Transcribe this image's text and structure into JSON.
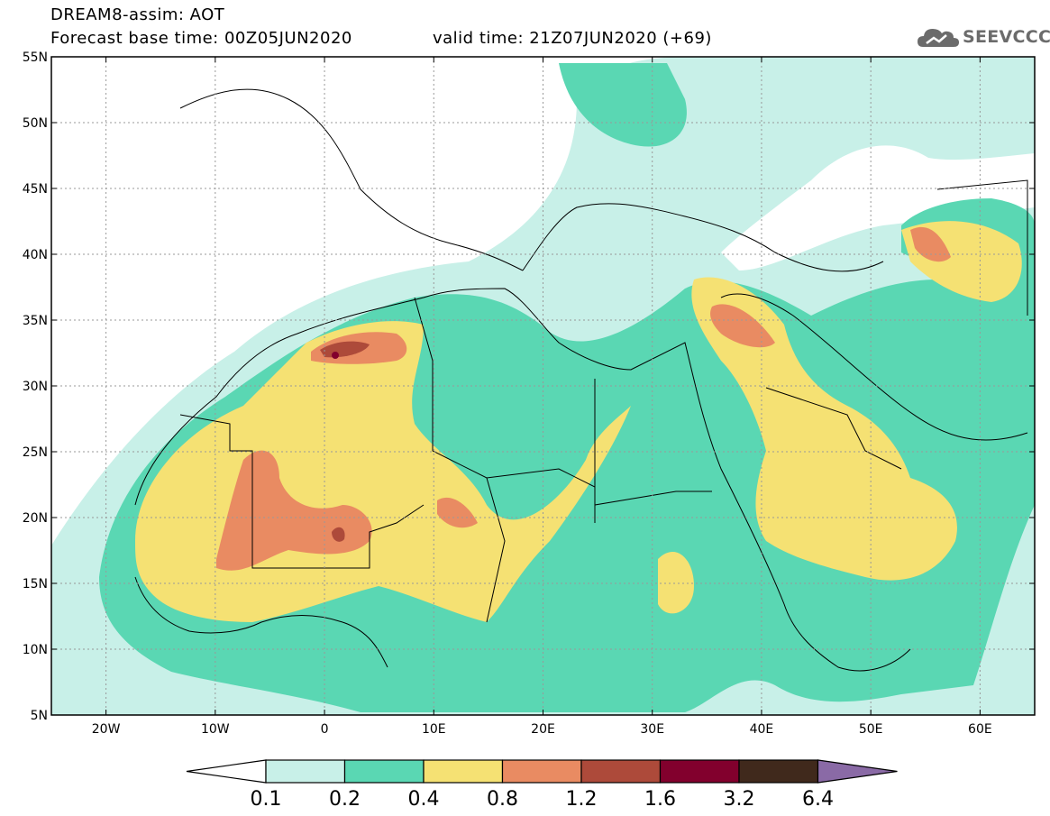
{
  "header": {
    "title_line1": "DREAM8-assim: AOT",
    "title_line2": "Forecast base time: 00Z05JUN2020",
    "valid_time": "valid time: 21Z07JUN2020 (+69)",
    "logo_text": "SEEVCCC"
  },
  "map": {
    "lon_range": [
      -25,
      65
    ],
    "lat_range": [
      5,
      55
    ],
    "lat_ticks": [
      {
        "value": 55,
        "label": "55N"
      },
      {
        "value": 50,
        "label": "50N"
      },
      {
        "value": 45,
        "label": "45N"
      },
      {
        "value": 40,
        "label": "40N"
      },
      {
        "value": 35,
        "label": "35N"
      },
      {
        "value": 30,
        "label": "30N"
      },
      {
        "value": 25,
        "label": "25N"
      },
      {
        "value": 20,
        "label": "20N"
      },
      {
        "value": 15,
        "label": "15N"
      },
      {
        "value": 10,
        "label": "10N"
      },
      {
        "value": 5,
        "label": "5N"
      }
    ],
    "lon_ticks": [
      {
        "value": -20,
        "label": "20W"
      },
      {
        "value": -10,
        "label": "10W"
      },
      {
        "value": 0,
        "label": "0"
      },
      {
        "value": 10,
        "label": "10E"
      },
      {
        "value": 20,
        "label": "20E"
      },
      {
        "value": 30,
        "label": "30E"
      },
      {
        "value": 40,
        "label": "40E"
      },
      {
        "value": 50,
        "label": "50E"
      },
      {
        "value": 60,
        "label": "60E"
      }
    ],
    "grid": true
  },
  "colorbar": {
    "labels": [
      "0.1",
      "0.2",
      "0.4",
      "0.8",
      "1.2",
      "1.6",
      "3.2",
      "6.4"
    ],
    "colors": [
      "#ffffff",
      "#c8f0e8",
      "#5ad7b3",
      "#f5e173",
      "#e98b62",
      "#ad4a3a",
      "#82002d",
      "#40291c",
      "#8a6aa6"
    ]
  }
}
